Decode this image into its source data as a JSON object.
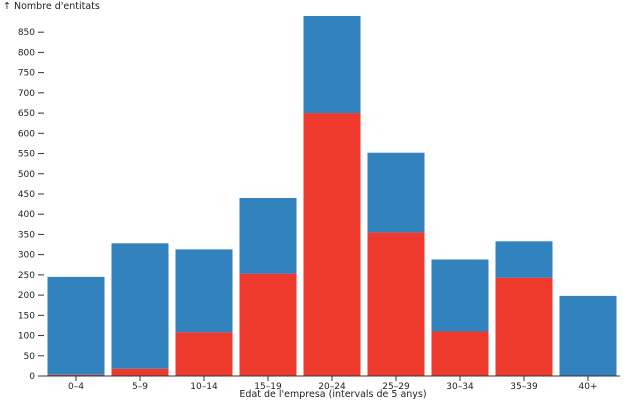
{
  "chart_data": {
    "type": "bar",
    "stacked": true,
    "ylabel": "↑ Nombre d'entitats",
    "xlabel": "Edat de l'empresa (intervals de 5 anys)",
    "categories": [
      "0–4",
      "5–9",
      "10–14",
      "15–19",
      "20–24",
      "25–29",
      "30–34",
      "35–39",
      "40+"
    ],
    "y_ticks": [
      0,
      50,
      100,
      150,
      200,
      250,
      300,
      350,
      400,
      450,
      500,
      550,
      600,
      650,
      700,
      750,
      800,
      850
    ],
    "ylim": [
      0,
      890
    ],
    "series": [
      {
        "values": [
          3,
          18,
          108,
          253,
          650,
          355,
          110,
          243,
          0
        ],
        "color": "#ee3a2c"
      },
      {
        "values": [
          242,
          310,
          205,
          187,
          240,
          197,
          178,
          90,
          198
        ],
        "color": "#3182bd"
      }
    ],
    "grid": false
  }
}
